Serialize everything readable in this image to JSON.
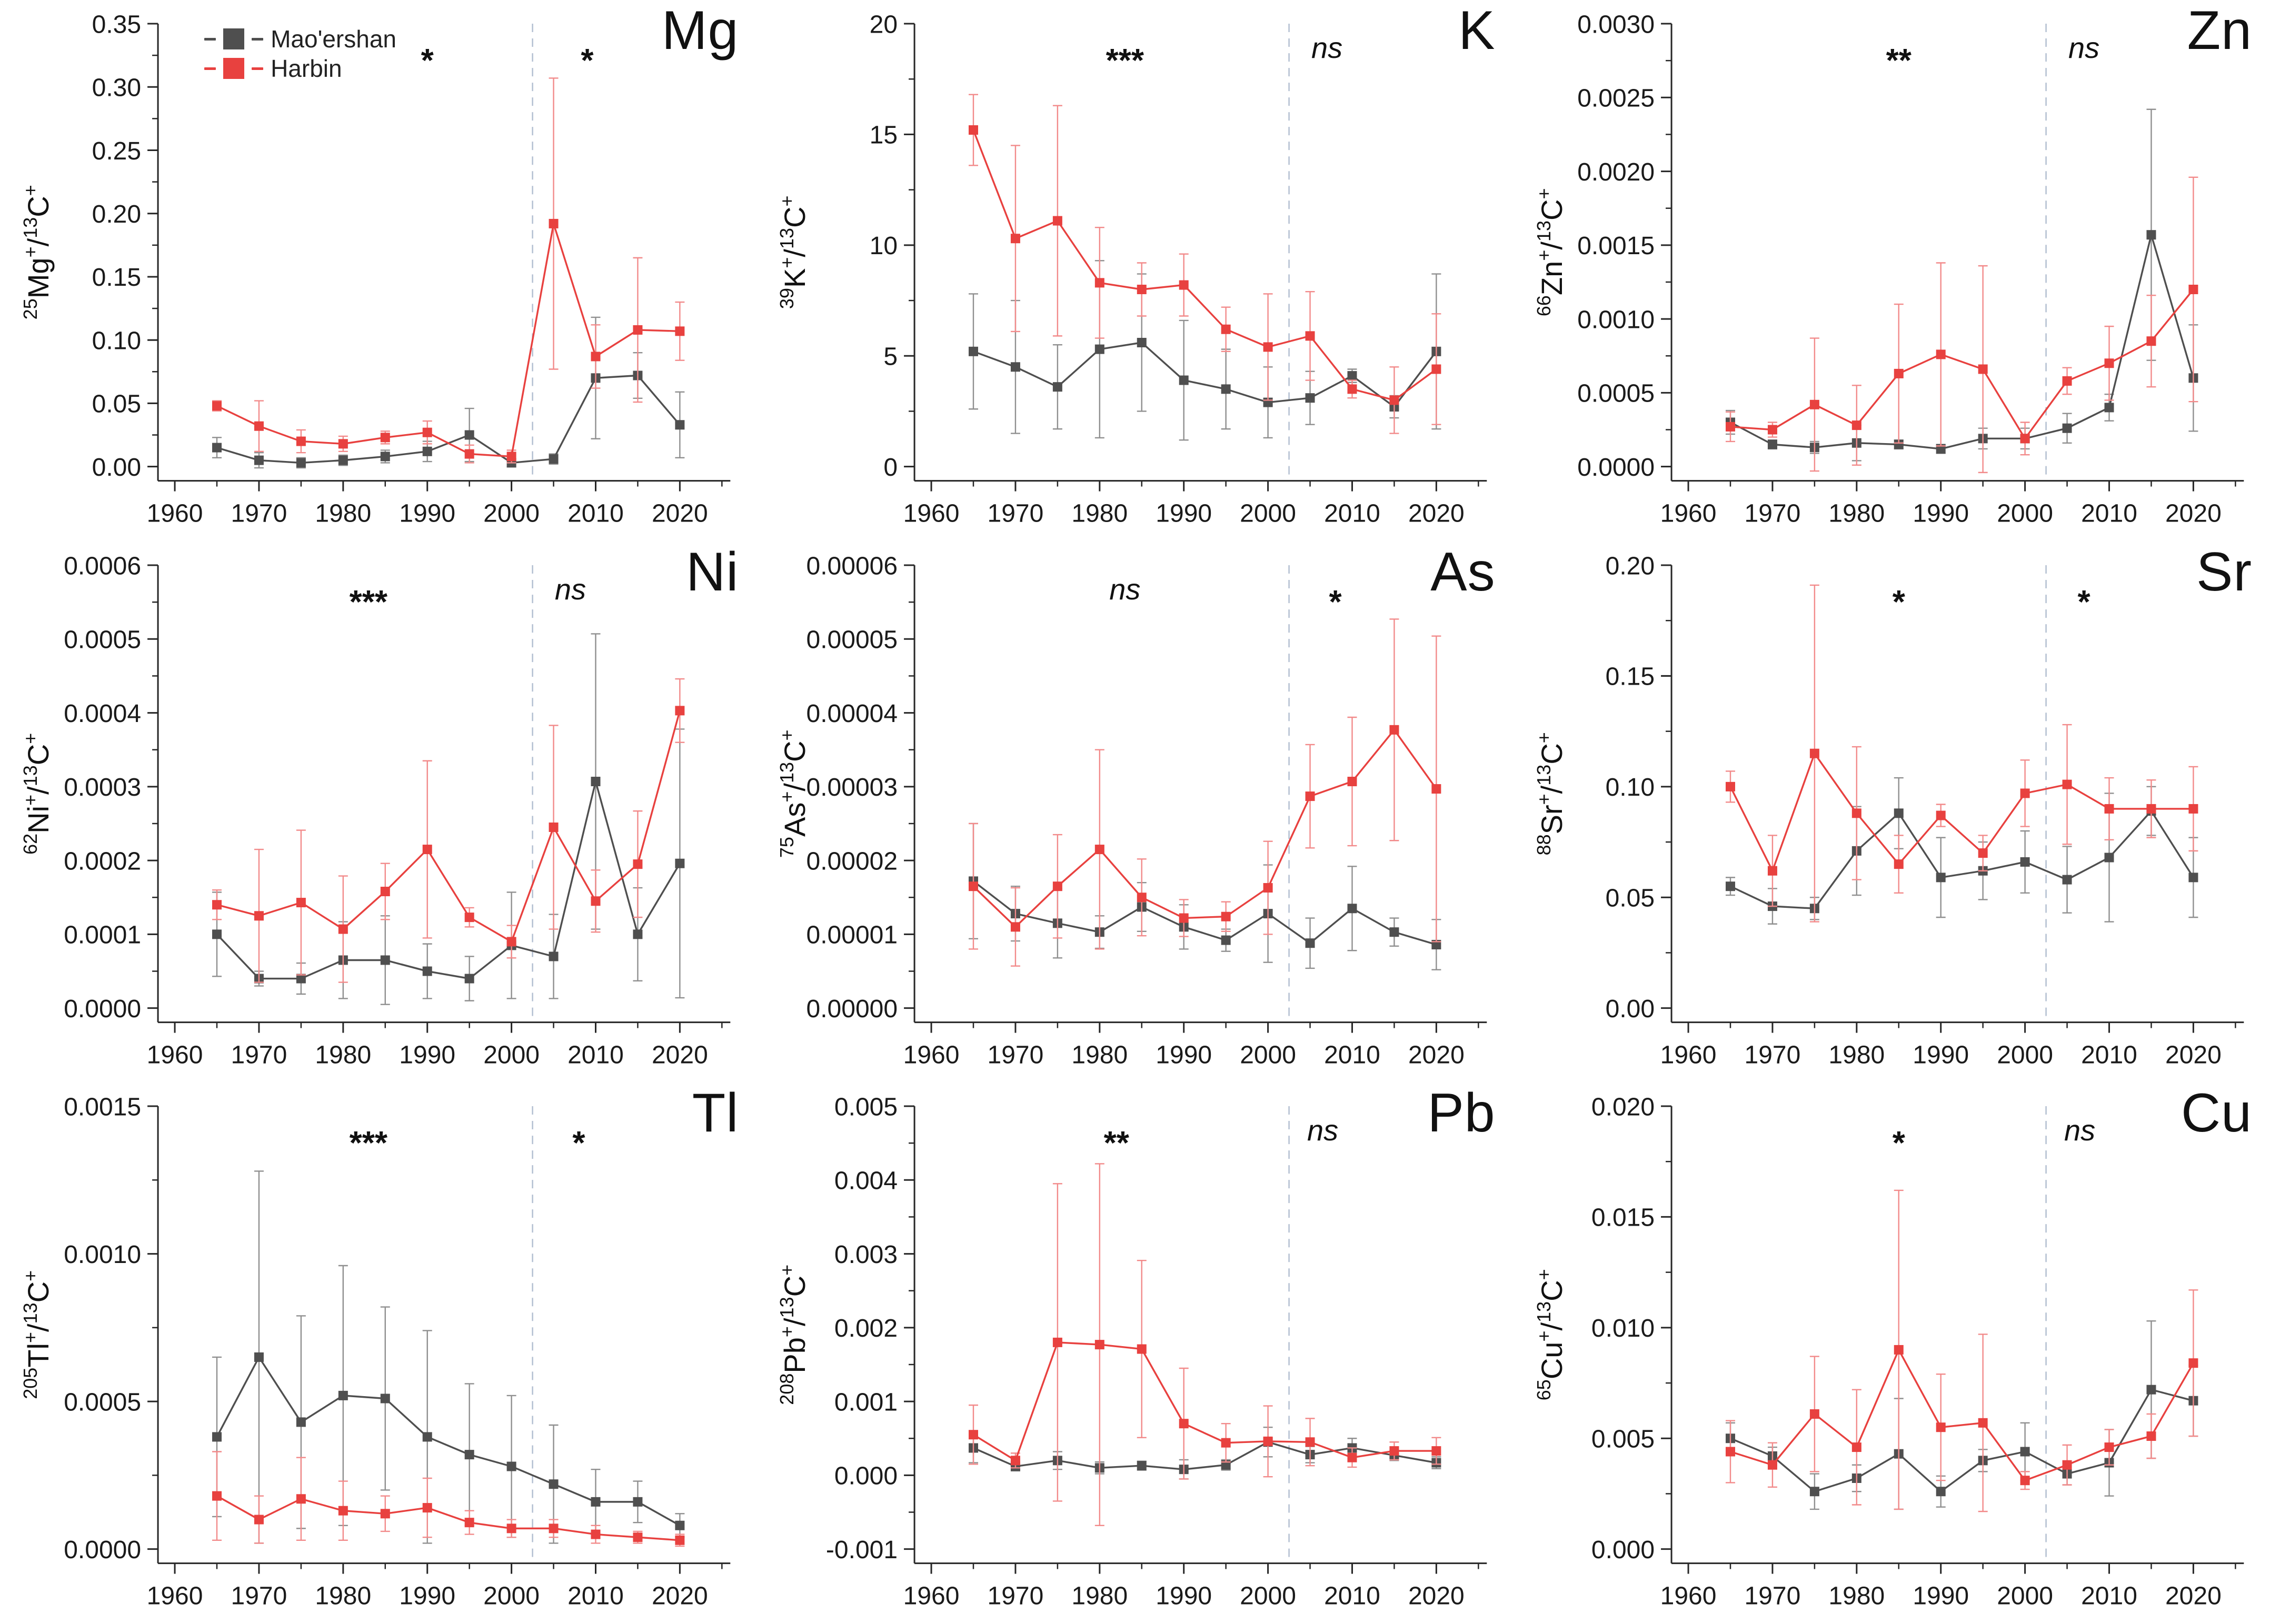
{
  "page": {
    "background": "#ffffff"
  },
  "colors": {
    "maoershan": "#4f4f4f",
    "harbin": "#e8413f",
    "maoershan_err": "#8f8f8f",
    "harbin_err": "#f28a8a",
    "axis": "#262626",
    "tick_text": "#1a1a1a",
    "divider": "#b3bfd1"
  },
  "legend": {
    "items": [
      {
        "label": "Mao'ershan",
        "color": "#4f4f4f"
      },
      {
        "label": "Harbin",
        "color": "#e8413f"
      }
    ]
  },
  "x_axis": {
    "years": [
      1965,
      1970,
      1975,
      1980,
      1985,
      1990,
      1995,
      2000,
      2005,
      2010,
      2015,
      2020
    ],
    "major_ticks": [
      1960,
      1970,
      1980,
      1990,
      2000,
      2010,
      2020
    ],
    "minor_ticks": [
      1965,
      1975,
      1985,
      1995,
      2005,
      2015,
      2025
    ],
    "lim": [
      1958,
      2026
    ],
    "divider_x": 2002.5
  },
  "chart_data": [
    {
      "id": "mg",
      "type": "line",
      "title": "Mg",
      "xlabel": "",
      "ylabel": "^{25}Mg^{+}/^{13}C^{+}",
      "ylim": [
        0,
        0.35
      ],
      "ytick_vals": [
        0,
        0.05,
        0.1,
        0.15,
        0.2,
        0.25,
        0.3,
        0.35
      ],
      "ytick_labels": [
        "0.00",
        "0.05",
        "0.10",
        "0.15",
        "0.20",
        "0.25",
        "0.30",
        "0.35"
      ],
      "sig": [
        {
          "text": "*",
          "x": 1990
        },
        {
          "text": "*",
          "x": 2009
        }
      ],
      "series": [
        {
          "name": "Mao'ershan",
          "values": [
            0.015,
            0.005,
            0.003,
            0.005,
            0.008,
            0.012,
            0.025,
            0.003,
            0.006,
            0.07,
            0.072,
            0.033
          ],
          "errors": [
            0.008,
            0.006,
            0.004,
            0.004,
            0.005,
            0.008,
            0.021,
            0.003,
            0.004,
            0.048,
            0.018,
            0.026
          ]
        },
        {
          "name": "Harbin",
          "values": [
            0.048,
            0.032,
            0.02,
            0.018,
            0.023,
            0.027,
            0.01,
            0.008,
            0.192,
            0.087,
            0.108,
            0.107
          ],
          "errors": [
            0.004,
            0.02,
            0.009,
            0.006,
            0.005,
            0.009,
            0.007,
            0.005,
            0.115,
            0.025,
            0.057,
            0.023
          ]
        }
      ]
    },
    {
      "id": "k",
      "type": "line",
      "title": "K",
      "xlabel": "",
      "ylabel": "^{39}K^{+}/^{13}C^{+}",
      "ylim": [
        0,
        20
      ],
      "ytick_vals": [
        0,
        5,
        10,
        15,
        20
      ],
      "ytick_labels": [
        "0",
        "5",
        "10",
        "15",
        "20"
      ],
      "sig": [
        {
          "text": "***",
          "x": 1983
        },
        {
          "text": "ns",
          "x": 2007
        }
      ],
      "series": [
        {
          "name": "Mao'ershan",
          "values": [
            5.2,
            4.5,
            3.6,
            5.3,
            5.6,
            3.9,
            3.5,
            2.9,
            3.1,
            4.1,
            2.7,
            5.2
          ],
          "errors": [
            2.6,
            3.0,
            1.9,
            4.0,
            3.1,
            2.7,
            1.8,
            1.6,
            1.2,
            0.3,
            0.5,
            3.5
          ]
        },
        {
          "name": "Harbin",
          "values": [
            15.2,
            10.3,
            11.1,
            8.3,
            8.0,
            8.2,
            6.2,
            5.4,
            5.9,
            3.5,
            3.0,
            4.4
          ],
          "errors": [
            1.6,
            4.2,
            5.2,
            2.5,
            1.2,
            1.4,
            1.0,
            2.4,
            2.0,
            0.4,
            1.5,
            2.5
          ]
        }
      ]
    },
    {
      "id": "zn",
      "type": "line",
      "title": "Zn",
      "xlabel": "",
      "ylabel": "^{66}Zn^{+}/^{13}C^{+}",
      "ylim": [
        0,
        0.003
      ],
      "ytick_vals": [
        0,
        0.0005,
        0.001,
        0.0015,
        0.002,
        0.0025,
        0.003
      ],
      "ytick_labels": [
        "0.0000",
        "0.0005",
        "0.0010",
        "0.0015",
        "0.0020",
        "0.0025",
        "0.0030"
      ],
      "sig": [
        {
          "text": "**",
          "x": 1985
        },
        {
          "text": "ns",
          "x": 2007
        }
      ],
      "series": [
        {
          "name": "Mao'ershan",
          "values": [
            0.0003,
            0.00015,
            0.00013,
            0.00016,
            0.00015,
            0.00012,
            0.00019,
            0.00019,
            0.00026,
            0.0004,
            0.00157,
            0.0006
          ],
          "errors": [
            8e-05,
            3e-05,
            4e-05,
            0.00012,
            3e-05,
            3e-05,
            7e-05,
            7e-05,
            0.0001,
            9e-05,
            0.00085,
            0.00036
          ]
        },
        {
          "name": "Harbin",
          "values": [
            0.00027,
            0.00025,
            0.00042,
            0.00028,
            0.00063,
            0.00076,
            0.00066,
            0.00019,
            0.00058,
            0.0007,
            0.00085,
            0.0012
          ],
          "errors": [
            0.0001,
            5e-05,
            0.00045,
            0.00027,
            0.00047,
            0.00062,
            0.0007,
            0.00011,
            9e-05,
            0.00025,
            0.00031,
            0.00076
          ]
        }
      ]
    },
    {
      "id": "ni",
      "type": "line",
      "title": "Ni",
      "xlabel": "",
      "ylabel": "^{62}Ni^{+}/^{13}C^{+}",
      "ylim": [
        0,
        0.0006
      ],
      "ytick_vals": [
        0,
        0.0001,
        0.0002,
        0.0003,
        0.0004,
        0.0005,
        0.0006
      ],
      "ytick_labels": [
        "0.0000",
        "0.0001",
        "0.0002",
        "0.0003",
        "0.0004",
        "0.0005",
        "0.0006"
      ],
      "sig": [
        {
          "text": "***",
          "x": 1983
        },
        {
          "text": "ns",
          "x": 2007
        }
      ],
      "series": [
        {
          "name": "Mao'ershan",
          "values": [
            0.0001,
            4e-05,
            4e-05,
            6.5e-05,
            6.5e-05,
            5e-05,
            4e-05,
            8.5e-05,
            7e-05,
            0.000307,
            0.0001,
            0.000196
          ],
          "errors": [
            5.7e-05,
            1e-05,
            2.1e-05,
            5.2e-05,
            6e-05,
            3.7e-05,
            3e-05,
            7.2e-05,
            5.7e-05,
            0.0002,
            6.3e-05,
            0.000182
          ]
        },
        {
          "name": "Harbin",
          "values": [
            0.00014,
            0.000125,
            0.000143,
            0.000107,
            0.000158,
            0.000215,
            0.000123,
            9e-05,
            0.000245,
            0.000145,
            0.000195,
            0.000403
          ],
          "errors": [
            2e-05,
            9e-05,
            9.8e-05,
            7.2e-05,
            3.8e-05,
            0.00012,
            1.3e-05,
            2.2e-05,
            0.000138,
            4.2e-05,
            7.2e-05,
            4.3e-05
          ]
        }
      ]
    },
    {
      "id": "as",
      "type": "line",
      "title": "As",
      "xlabel": "",
      "ylabel": "^{75}As^{+}/^{13}C^{+}",
      "ylim": [
        0,
        6e-05
      ],
      "ytick_vals": [
        0,
        1e-05,
        2e-05,
        3e-05,
        4e-05,
        5e-05,
        6e-05
      ],
      "ytick_labels": [
        "0.00000",
        "0.00001",
        "0.00002",
        "0.00003",
        "0.00004",
        "0.00005",
        "0.00006"
      ],
      "sig": [
        {
          "text": "ns",
          "x": 1983
        },
        {
          "text": "*",
          "x": 2008
        }
      ],
      "series": [
        {
          "name": "Mao'ershan",
          "values": [
            1.72e-05,
            1.28e-05,
            1.15e-05,
            1.03e-05,
            1.37e-05,
            1.1e-05,
            9.2e-06,
            1.28e-05,
            8.8e-06,
            1.35e-05,
            1.03e-05,
            8.6e-06
          ],
          "errors": [
            7.8e-06,
            3.7e-06,
            4.7e-06,
            2.2e-06,
            3.3e-06,
            3e-06,
            1.5e-06,
            6.6e-06,
            3.4e-06,
            5.7e-06,
            1.9e-06,
            3.4e-06
          ]
        },
        {
          "name": "Harbin",
          "values": [
            1.65e-05,
            1.1e-05,
            1.65e-05,
            2.15e-05,
            1.5e-05,
            1.22e-05,
            1.24e-05,
            1.63e-05,
            2.87e-05,
            3.07e-05,
            3.77e-05,
            2.97e-05
          ],
          "errors": [
            8.5e-06,
            5.3e-06,
            7e-06,
            1.35e-05,
            5.2e-06,
            2.5e-06,
            2e-06,
            6.3e-06,
            7e-06,
            8.7e-06,
            1.5e-05,
            2.07e-05
          ]
        }
      ]
    },
    {
      "id": "sr",
      "type": "line",
      "title": "Sr",
      "xlabel": "",
      "ylabel": "^{88}Sr^{+}/^{13}C^{+}",
      "ylim": [
        0,
        0.2
      ],
      "ytick_vals": [
        0,
        0.05,
        0.1,
        0.15,
        0.2
      ],
      "ytick_labels": [
        "0.00",
        "0.05",
        "0.10",
        "0.15",
        "0.20"
      ],
      "sig": [
        {
          "text": "*",
          "x": 1985
        },
        {
          "text": "*",
          "x": 2007
        }
      ],
      "series": [
        {
          "name": "Mao'ershan",
          "values": [
            0.055,
            0.046,
            0.045,
            0.071,
            0.088,
            0.059,
            0.062,
            0.066,
            0.058,
            0.068,
            0.089,
            0.059
          ],
          "errors": [
            0.004,
            0.008,
            0.005,
            0.02,
            0.016,
            0.018,
            0.013,
            0.014,
            0.015,
            0.029,
            0.011,
            0.018
          ]
        },
        {
          "name": "Harbin",
          "values": [
            0.1,
            0.062,
            0.115,
            0.088,
            0.065,
            0.087,
            0.07,
            0.097,
            0.101,
            0.09,
            0.09,
            0.09
          ],
          "errors": [
            0.007,
            0.016,
            0.076,
            0.03,
            0.013,
            0.005,
            0.008,
            0.015,
            0.027,
            0.014,
            0.013,
            0.019
          ]
        }
      ]
    },
    {
      "id": "tl",
      "type": "line",
      "title": "Tl",
      "xlabel": "",
      "ylabel": "^{205}Tl^{+}/^{13}C^{+}",
      "ylim": [
        0,
        0.0015
      ],
      "ytick_vals": [
        0,
        0.0005,
        0.001,
        0.0015
      ],
      "ytick_labels": [
        "0.0000",
        "0.0005",
        "0.0010",
        "0.0015"
      ],
      "sig": [
        {
          "text": "***",
          "x": 1983
        },
        {
          "text": "*",
          "x": 2008
        }
      ],
      "series": [
        {
          "name": "Mao'ershan",
          "values": [
            0.00038,
            0.00065,
            0.00043,
            0.00052,
            0.00051,
            0.00038,
            0.00032,
            0.00028,
            0.00022,
            0.00016,
            0.00016,
            8e-05
          ],
          "errors": [
            0.00027,
            0.00063,
            0.00036,
            0.00044,
            0.00031,
            0.00036,
            0.00024,
            0.00024,
            0.0002,
            0.00011,
            7e-05,
            4e-05
          ]
        },
        {
          "name": "Harbin",
          "values": [
            0.00018,
            0.0001,
            0.00017,
            0.00013,
            0.00012,
            0.00014,
            9e-05,
            7e-05,
            7e-05,
            5e-05,
            4e-05,
            3e-05
          ],
          "errors": [
            0.00015,
            8e-05,
            0.00014,
            0.0001,
            6e-05,
            0.0001,
            4e-05,
            3e-05,
            3e-05,
            3e-05,
            2e-05,
            2e-05
          ]
        }
      ]
    },
    {
      "id": "pb",
      "type": "line",
      "title": "Pb",
      "xlabel": "",
      "ylabel": "^{208}Pb^{+}/^{13}C^{+}",
      "ylim": [
        -0.001,
        0.005
      ],
      "ytick_vals": [
        -0.001,
        0,
        0.001,
        0.002,
        0.003,
        0.004,
        0.005
      ],
      "ytick_labels": [
        "-0.001",
        "0.000",
        "0.001",
        "0.002",
        "0.003",
        "0.004",
        "0.005"
      ],
      "sig": [
        {
          "text": "**",
          "x": 1982
        },
        {
          "text": "ns",
          "x": 2006.5
        }
      ],
      "series": [
        {
          "name": "Mao'ershan",
          "values": [
            0.00037,
            0.00012,
            0.0002,
            0.0001,
            0.00013,
            8e-05,
            0.00014,
            0.00045,
            0.00028,
            0.00037,
            0.00027,
            0.00017
          ],
          "errors": [
            0.0002,
            6e-05,
            0.00012,
            8e-05,
            6e-05,
            0.00013,
            7e-05,
            0.0002,
            0.00011,
            0.00013,
            7e-05,
            8e-05
          ]
        },
        {
          "name": "Harbin",
          "values": [
            0.00055,
            0.0002,
            0.0018,
            0.00177,
            0.00171,
            0.0007,
            0.00044,
            0.00046,
            0.00045,
            0.00024,
            0.00033,
            0.00033
          ],
          "errors": [
            0.0004,
            0.0001,
            0.00215,
            0.00245,
            0.0012,
            0.00075,
            0.00026,
            0.00048,
            0.00032,
            0.00013,
            0.00012,
            0.00018
          ]
        }
      ]
    },
    {
      "id": "cu",
      "type": "line",
      "title": "Cu",
      "xlabel": "",
      "ylabel": "^{65}Cu^{+}/^{13}C^{+}",
      "ylim": [
        0,
        0.02
      ],
      "ytick_vals": [
        0,
        0.005,
        0.01,
        0.015,
        0.02
      ],
      "ytick_labels": [
        "0.000",
        "0.005",
        "0.010",
        "0.015",
        "0.020"
      ],
      "sig": [
        {
          "text": "*",
          "x": 1985
        },
        {
          "text": "ns",
          "x": 2006.5
        }
      ],
      "series": [
        {
          "name": "Mao'ershan",
          "values": [
            0.005,
            0.0042,
            0.0026,
            0.0032,
            0.0043,
            0.0026,
            0.004,
            0.0044,
            0.0034,
            0.0039,
            0.0072,
            0.0067
          ],
          "errors": [
            0.0007,
            0.0004,
            0.0008,
            0.0006,
            0.0025,
            0.0007,
            0.0005,
            0.0013,
            0.0005,
            0.0015,
            0.0031,
            0.0016
          ]
        },
        {
          "name": "Harbin",
          "values": [
            0.0044,
            0.0038,
            0.0061,
            0.0046,
            0.009,
            0.0055,
            0.0057,
            0.0031,
            0.0038,
            0.0046,
            0.0051,
            0.0084
          ],
          "errors": [
            0.0014,
            0.001,
            0.0026,
            0.0026,
            0.0072,
            0.0024,
            0.004,
            0.0004,
            0.0009,
            0.0008,
            0.001,
            0.0033
          ]
        }
      ]
    }
  ]
}
